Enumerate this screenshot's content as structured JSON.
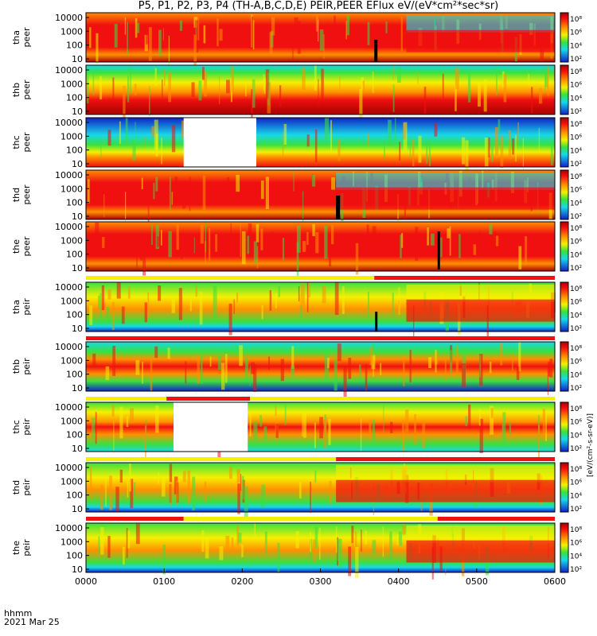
{
  "title": "P5, P1, P2, P3, P4 (TH-A,B,C,D,E) PEIR,PEER EFlux eV/(eV*cm²*sec*sr)",
  "footer": {
    "time_unit": "hhmm",
    "date": "2021 Mar 25"
  },
  "colorbar_label": "[eV/(cm²-s-sr-eV)]",
  "colors": {
    "cold": "#1020c8",
    "cyan": "#18d8e8",
    "green": "#38e040",
    "yellow": "#f4f000",
    "orange": "#ff9000",
    "red": "#f01010",
    "dark_red": "#a80000"
  },
  "chart_data": {
    "type": "heatmap",
    "x_tick_labels": [
      "0000",
      "0100",
      "0200",
      "0300",
      "0400",
      "0500",
      "0600"
    ],
    "xlim": [
      "0000",
      "0600"
    ],
    "y_scale": "log",
    "y_tick_labels": [
      "10000",
      "1000",
      "100",
      "10"
    ],
    "colorbar_tick_labels": [
      "10⁸",
      "10⁶",
      "10⁴",
      "10²"
    ],
    "panels": [
      {
        "ylabel_1": "tha",
        "ylabel_2": "peer"
      },
      {
        "ylabel_1": "thb",
        "ylabel_2": "peer"
      },
      {
        "ylabel_1": "thc",
        "ylabel_2": "peer"
      },
      {
        "ylabel_1": "thd",
        "ylabel_2": "peer"
      },
      {
        "ylabel_1": "the",
        "ylabel_2": "peer"
      },
      {
        "ylabel_1": "tha",
        "ylabel_2": "peir"
      },
      {
        "ylabel_1": "thb",
        "ylabel_2": "peir"
      },
      {
        "ylabel_1": "thc",
        "ylabel_2": "peir"
      },
      {
        "ylabel_1": "thd",
        "ylabel_2": "peir"
      },
      {
        "ylabel_1": "the",
        "ylabel_2": "peir"
      }
    ]
  }
}
